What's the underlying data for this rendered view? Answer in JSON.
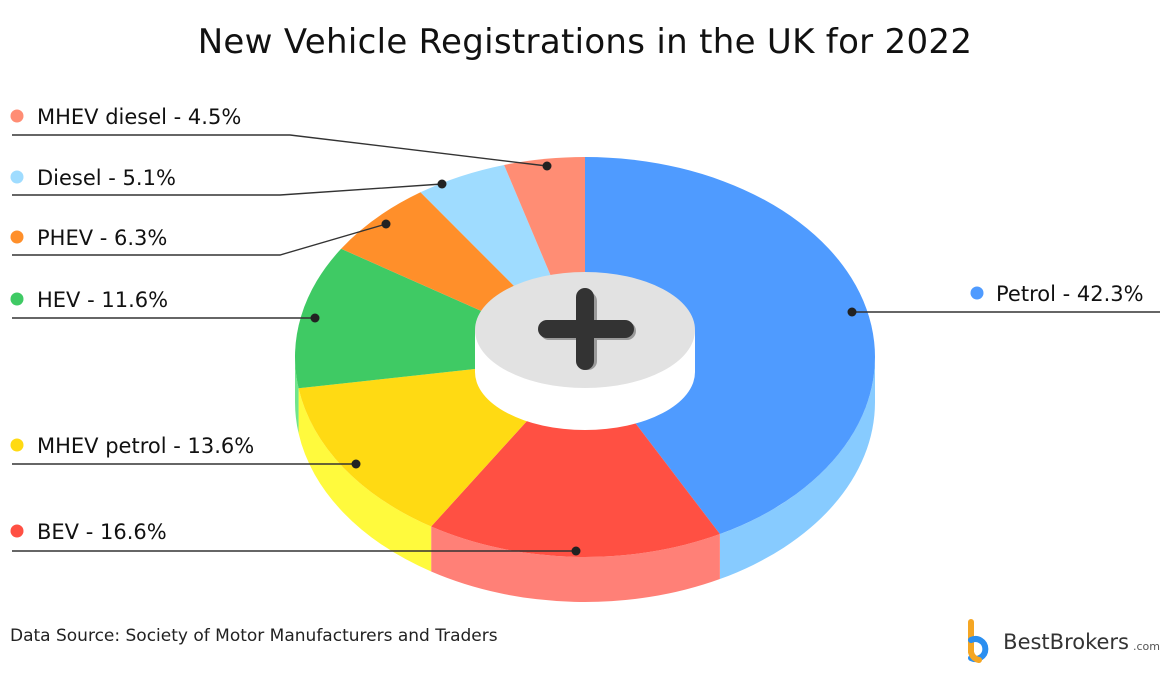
{
  "title": "New Vehicle Registrations in the UK for 2022",
  "source": "Data Source: Society of Motor Manufacturers and Traders",
  "brand": {
    "name": "BestBrokers",
    "suffix": ".com",
    "icon": "bestbrokers-logo-icon"
  },
  "center_icon": "plus-icon",
  "chart_data": {
    "type": "pie",
    "title": "New Vehicle Registrations in the UK for 2022",
    "unit": "%",
    "slices": [
      {
        "label": "Petrol - 42.3%",
        "name": "Petrol",
        "value": 42.3,
        "color": "#4f9bff",
        "side_color": "#87cbff"
      },
      {
        "label": "BEV - 16.6%",
        "name": "BEV",
        "value": 16.6,
        "color": "#ff5043",
        "side_color": "#ff8077"
      },
      {
        "label": "MHEV petrol - 13.6%",
        "name": "MHEV petrol",
        "value": 13.6,
        "color": "#ffda13",
        "side_color": "#fffa3d"
      },
      {
        "label": "HEV - 11.6%",
        "name": "HEV",
        "value": 11.6,
        "color": "#3fca64",
        "side_color": "#70e58c"
      },
      {
        "label": "PHEV - 6.3%",
        "name": "PHEV",
        "value": 6.3,
        "color": "#ff8f2a",
        "side_color": "#ffb06a"
      },
      {
        "label": "Diesel - 5.1%",
        "name": "Diesel",
        "value": 5.1,
        "color": "#9fdcff",
        "side_color": "#c6ebff"
      },
      {
        "label": "MHEV diesel - 4.5%",
        "name": "MHEV diesel",
        "value": 4.5,
        "color": "#ff8d74",
        "side_color": "#ffb2a1"
      }
    ],
    "legend_position": "callouts-left-and-right"
  }
}
